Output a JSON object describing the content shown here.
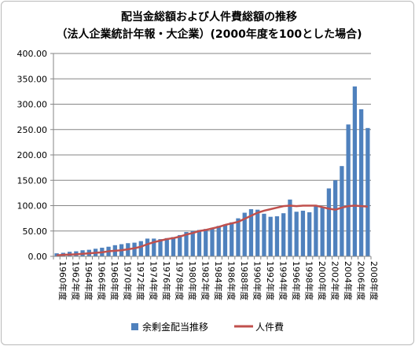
{
  "chart_data": {
    "type": "bar",
    "title": "配当金総額および人件費総額の推移",
    "subtitle": "（法人企業統計年報・大企業）(2000年度を100とした場合)",
    "xlabel": "",
    "ylabel": "",
    "ylim": [
      0,
      400
    ],
    "y_ticks": [
      "0.00",
      "50.00",
      "100.00",
      "150.00",
      "200.00",
      "250.00",
      "300.00",
      "350.00",
      "400.00"
    ],
    "grid": true,
    "legend_position": "bottom",
    "categories": [
      "1960",
      "1961",
      "1962",
      "1963",
      "1964",
      "1965",
      "1966",
      "1967",
      "1968",
      "1969",
      "1970",
      "1971",
      "1972",
      "1973",
      "1974",
      "1975",
      "1976",
      "1977",
      "1978",
      "1979",
      "1980",
      "1981",
      "1982",
      "1983",
      "1984",
      "1985",
      "1986",
      "1987",
      "1988",
      "1989",
      "1990",
      "1991",
      "1992",
      "1993",
      "1994",
      "1995",
      "1996",
      "1997",
      "1998",
      "1999",
      "2000",
      "2001",
      "2002",
      "2003",
      "2004",
      "2005",
      "2006",
      "2007",
      "2008"
    ],
    "x_tick_labels": [
      "1960年度",
      "1962年度",
      "1964年度",
      "1966年度",
      "1968年度",
      "1970年度",
      "1972年度",
      "1974年度",
      "1976年度",
      "1978年度",
      "1980年度",
      "1982年度",
      "1984年度",
      "1986年度",
      "1988年度",
      "1990年度",
      "1992年度",
      "1994年度",
      "1996年度",
      "1998年度",
      "2000年度",
      "2002年度",
      "2004年度",
      "2006年度",
      "2008年度"
    ],
    "series": [
      {
        "name": "余剰金配当推移",
        "type": "bar",
        "color": "#4f81bd",
        "values": [
          6,
          7,
          9,
          10,
          12,
          13,
          15,
          17,
          19,
          22,
          24,
          26,
          27,
          30,
          35,
          35,
          34,
          36,
          38,
          42,
          48,
          50,
          52,
          54,
          56,
          60,
          63,
          67,
          75,
          86,
          93,
          92,
          84,
          78,
          79,
          85,
          112,
          88,
          90,
          87,
          100,
          96,
          134,
          150,
          178,
          260,
          335,
          290,
          253
        ]
      },
      {
        "name": "人件費",
        "type": "line",
        "color": "#c0504d",
        "values": [
          2,
          3,
          3.5,
          4,
          5,
          6,
          7,
          8,
          10,
          11,
          12,
          14,
          16,
          19,
          24,
          28,
          31,
          34,
          36,
          39,
          43,
          46,
          50,
          52,
          55,
          58,
          62,
          65,
          68,
          74,
          80,
          86,
          90,
          93,
          96,
          99,
          100,
          99,
          100,
          100,
          100,
          97,
          94,
          92,
          96,
          99,
          100,
          99,
          98
        ]
      }
    ]
  }
}
